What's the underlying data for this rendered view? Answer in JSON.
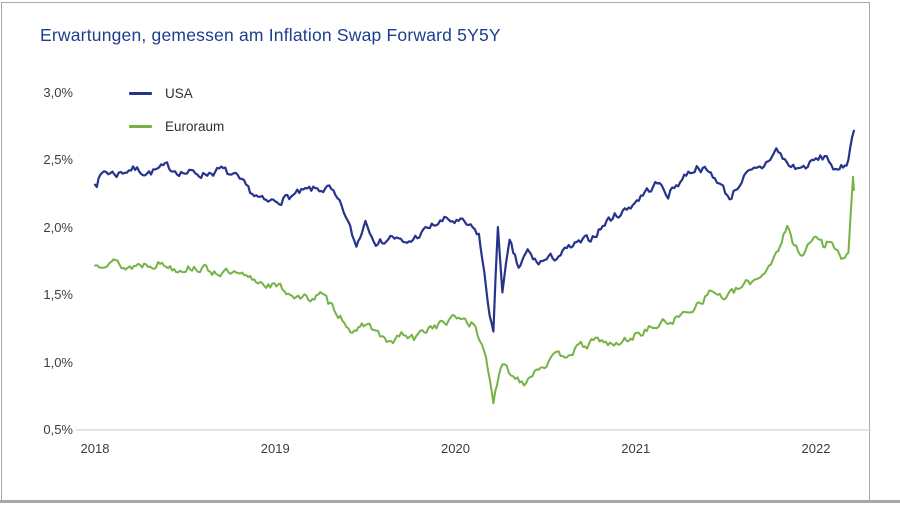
{
  "title": "Erwartungen, gemessen am Inflation Swap Forward 5Y5Y",
  "colors": {
    "title": "#1b3e8f",
    "border": "#a8a8a8",
    "axis_line": "#d9d9d9",
    "tick_text": "#3d3d3d",
    "usa": "#27348b",
    "euroraum": "#76b346"
  },
  "legend": {
    "items": [
      {
        "label": "USA"
      },
      {
        "label": "Euroraum"
      }
    ]
  },
  "chart_data": {
    "type": "line",
    "title": "Erwartungen, gemessen am Inflation Swap Forward 5Y5Y",
    "xlabel": "",
    "ylabel": "",
    "x_unit": "year (decimal)",
    "y_unit": "percent",
    "xlim": [
      2018.0,
      2022.21
    ],
    "ylim": [
      0.5,
      3.0
    ],
    "grid": false,
    "legend_position": "top-left",
    "y_ticks": [
      {
        "value": 3.0,
        "label": "3,0%"
      },
      {
        "value": 2.5,
        "label": "2,5%"
      },
      {
        "value": 2.0,
        "label": "2,0%"
      },
      {
        "value": 1.5,
        "label": "1,5%"
      },
      {
        "value": 1.0,
        "label": "1,0%"
      },
      {
        "value": 0.5,
        "label": "0,5%"
      }
    ],
    "x_ticks": [
      {
        "value": 2018,
        "label": "2018"
      },
      {
        "value": 2019,
        "label": "2019"
      },
      {
        "value": 2020,
        "label": "2020"
      },
      {
        "value": 2021,
        "label": "2021"
      },
      {
        "value": 2022,
        "label": "2022"
      }
    ],
    "series": [
      {
        "name": "USA",
        "color": "#27348b",
        "points": [
          [
            2018.0,
            2.32
          ],
          [
            2018.05,
            2.42
          ],
          [
            2018.12,
            2.4
          ],
          [
            2018.2,
            2.44
          ],
          [
            2018.3,
            2.41
          ],
          [
            2018.4,
            2.45
          ],
          [
            2018.5,
            2.41
          ],
          [
            2018.6,
            2.4
          ],
          [
            2018.7,
            2.43
          ],
          [
            2018.78,
            2.37
          ],
          [
            2018.85,
            2.28
          ],
          [
            2018.95,
            2.18
          ],
          [
            2019.0,
            2.2
          ],
          [
            2019.1,
            2.24
          ],
          [
            2019.2,
            2.28
          ],
          [
            2019.3,
            2.29
          ],
          [
            2019.38,
            2.12
          ],
          [
            2019.45,
            1.86
          ],
          [
            2019.5,
            2.06
          ],
          [
            2019.57,
            1.88
          ],
          [
            2019.65,
            1.94
          ],
          [
            2019.72,
            1.87
          ],
          [
            2019.8,
            1.95
          ],
          [
            2019.88,
            2.02
          ],
          [
            2019.95,
            2.06
          ],
          [
            2020.05,
            2.03
          ],
          [
            2020.13,
            1.95
          ],
          [
            2020.18,
            1.45
          ],
          [
            2020.21,
            1.22
          ],
          [
            2020.235,
            2.0
          ],
          [
            2020.26,
            1.55
          ],
          [
            2020.3,
            1.88
          ],
          [
            2020.35,
            1.7
          ],
          [
            2020.4,
            1.82
          ],
          [
            2020.45,
            1.74
          ],
          [
            2020.55,
            1.78
          ],
          [
            2020.65,
            1.86
          ],
          [
            2020.75,
            1.92
          ],
          [
            2020.85,
            2.06
          ],
          [
            2020.95,
            2.14
          ],
          [
            2021.05,
            2.26
          ],
          [
            2021.12,
            2.33
          ],
          [
            2021.18,
            2.25
          ],
          [
            2021.28,
            2.4
          ],
          [
            2021.35,
            2.46
          ],
          [
            2021.45,
            2.36
          ],
          [
            2021.52,
            2.22
          ],
          [
            2021.6,
            2.38
          ],
          [
            2021.7,
            2.44
          ],
          [
            2021.78,
            2.58
          ],
          [
            2021.85,
            2.46
          ],
          [
            2021.92,
            2.44
          ],
          [
            2022.0,
            2.5
          ],
          [
            2022.06,
            2.53
          ],
          [
            2022.12,
            2.4
          ],
          [
            2022.17,
            2.48
          ],
          [
            2022.21,
            2.72
          ]
        ]
      },
      {
        "name": "Euroraum",
        "color": "#76b346",
        "points": [
          [
            2018.0,
            1.72
          ],
          [
            2018.08,
            1.77
          ],
          [
            2018.17,
            1.7
          ],
          [
            2018.25,
            1.73
          ],
          [
            2018.35,
            1.74
          ],
          [
            2018.45,
            1.7
          ],
          [
            2018.55,
            1.71
          ],
          [
            2018.65,
            1.68
          ],
          [
            2018.75,
            1.66
          ],
          [
            2018.85,
            1.62
          ],
          [
            2018.95,
            1.59
          ],
          [
            2019.05,
            1.54
          ],
          [
            2019.15,
            1.47
          ],
          [
            2019.25,
            1.5
          ],
          [
            2019.35,
            1.37
          ],
          [
            2019.45,
            1.2
          ],
          [
            2019.5,
            1.3
          ],
          [
            2019.57,
            1.22
          ],
          [
            2019.63,
            1.13
          ],
          [
            2019.7,
            1.21
          ],
          [
            2019.77,
            1.17
          ],
          [
            2019.85,
            1.26
          ],
          [
            2019.95,
            1.3
          ],
          [
            2020.03,
            1.34
          ],
          [
            2020.1,
            1.28
          ],
          [
            2020.17,
            1.05
          ],
          [
            2020.21,
            0.72
          ],
          [
            2020.26,
            0.98
          ],
          [
            2020.32,
            0.9
          ],
          [
            2020.38,
            0.86
          ],
          [
            2020.45,
            0.96
          ],
          [
            2020.55,
            1.03
          ],
          [
            2020.65,
            1.09
          ],
          [
            2020.73,
            1.13
          ],
          [
            2020.8,
            1.17
          ],
          [
            2020.88,
            1.12
          ],
          [
            2020.95,
            1.17
          ],
          [
            2021.05,
            1.24
          ],
          [
            2021.15,
            1.29
          ],
          [
            2021.25,
            1.34
          ],
          [
            2021.35,
            1.45
          ],
          [
            2021.42,
            1.53
          ],
          [
            2021.5,
            1.48
          ],
          [
            2021.6,
            1.57
          ],
          [
            2021.68,
            1.63
          ],
          [
            2021.75,
            1.74
          ],
          [
            2021.8,
            1.88
          ],
          [
            2021.84,
            2.0
          ],
          [
            2021.88,
            1.86
          ],
          [
            2021.93,
            1.82
          ],
          [
            2022.0,
            1.94
          ],
          [
            2022.05,
            1.86
          ],
          [
            2022.09,
            1.92
          ],
          [
            2022.14,
            1.77
          ],
          [
            2022.18,
            1.8
          ],
          [
            2022.205,
            2.35
          ],
          [
            2022.21,
            2.28
          ]
        ]
      }
    ]
  }
}
